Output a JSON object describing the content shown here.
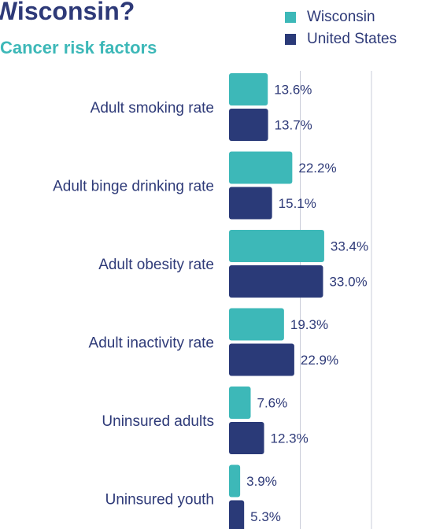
{
  "title": "Wisconsin?",
  "subtitle": "Cancer risk factors",
  "colors": {
    "wisconsin": "#3db8b8",
    "united_states": "#2a3a78",
    "text": "#2e3a78",
    "gridline": "#c9ccd8"
  },
  "chart_data": {
    "type": "bar",
    "orientation": "horizontal",
    "title": "Cancer risk factors",
    "categories": [
      "Adult smoking rate",
      "Adult binge drinking rate",
      "Adult obesity rate",
      "Adult inactivity rate",
      "Uninsured adults",
      "Uninsured youth"
    ],
    "series": [
      {
        "name": "Wisconsin",
        "values": [
          13.6,
          22.2,
          33.4,
          19.3,
          7.6,
          3.9
        ],
        "labels": [
          "13.6%",
          "22.2%",
          "33.4%",
          "19.3%",
          "7.6%",
          "3.9%"
        ]
      },
      {
        "name": "United States",
        "values": [
          13.7,
          15.1,
          33.0,
          22.9,
          12.3,
          5.3
        ],
        "labels": [
          "13.7%",
          "15.1%",
          "33.0%",
          "22.9%",
          "12.3%",
          "5.3%"
        ]
      }
    ],
    "xlim": [
      0,
      55
    ],
    "grid": true,
    "legend": "top-right"
  }
}
